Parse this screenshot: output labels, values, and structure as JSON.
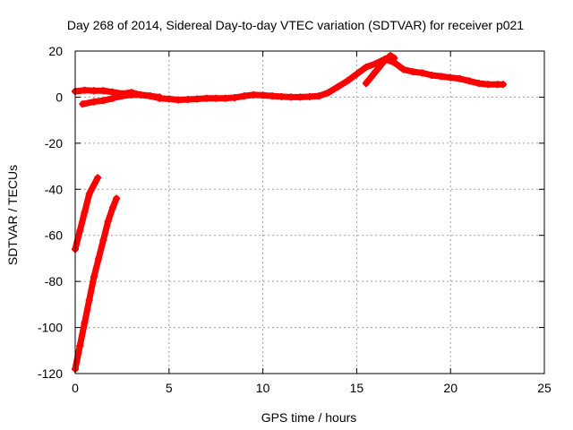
{
  "chart_data": {
    "type": "scatter",
    "title": "Day 268 of 2014, Sidereal Day-to-day VTEC variation (SDTVAR) for receiver p021",
    "xlabel": "GPS time / hours",
    "ylabel": "SDTVAR / TECUs",
    "xlim": [
      0,
      25
    ],
    "ylim": [
      -120,
      20
    ],
    "xticks": [
      0,
      5,
      10,
      15,
      20,
      25
    ],
    "yticks": [
      -120,
      -100,
      -80,
      -60,
      -40,
      -20,
      0,
      20
    ],
    "grid": true,
    "marker_color": "#ff0000",
    "series": [
      {
        "name": "main-trace",
        "points": [
          [
            0.0,
            2.5
          ],
          [
            0.5,
            3.0
          ],
          [
            1.0,
            2.8
          ],
          [
            1.5,
            2.8
          ],
          [
            2.0,
            2.2
          ],
          [
            2.5,
            1.5
          ],
          [
            3.0,
            2.0
          ],
          [
            3.5,
            1.0
          ],
          [
            4.0,
            0.5
          ],
          [
            4.5,
            -0.5
          ],
          [
            5.0,
            -0.8
          ],
          [
            5.5,
            -1.2
          ],
          [
            6.0,
            -1.0
          ],
          [
            6.5,
            -0.8
          ],
          [
            7.0,
            -0.5
          ],
          [
            7.5,
            -0.5
          ],
          [
            8.0,
            -0.5
          ],
          [
            8.5,
            -0.2
          ],
          [
            9.0,
            0.5
          ],
          [
            9.5,
            1.0
          ],
          [
            10.0,
            0.8
          ],
          [
            10.5,
            0.5
          ],
          [
            11.0,
            0.2
          ],
          [
            11.5,
            0.0
          ],
          [
            12.0,
            0.0
          ],
          [
            12.5,
            0.2
          ],
          [
            13.0,
            0.5
          ],
          [
            13.5,
            2.0
          ],
          [
            14.0,
            4.5
          ],
          [
            14.5,
            7.0
          ],
          [
            15.0,
            10.0
          ],
          [
            15.5,
            13.0
          ],
          [
            16.0,
            14.5
          ],
          [
            16.5,
            16.5
          ],
          [
            17.0,
            15.0
          ],
          [
            17.5,
            12.0
          ],
          [
            18.0,
            11.0
          ],
          [
            18.5,
            10.5
          ],
          [
            19.0,
            9.5
          ],
          [
            19.5,
            9.0
          ],
          [
            20.0,
            8.5
          ],
          [
            20.5,
            8.0
          ],
          [
            21.0,
            7.0
          ],
          [
            21.5,
            6.0
          ],
          [
            22.0,
            5.5
          ],
          [
            22.5,
            5.5
          ],
          [
            22.8,
            5.5
          ]
        ]
      },
      {
        "name": "lower-branch",
        "points": [
          [
            0.4,
            -3.0
          ],
          [
            1.0,
            -2.0
          ],
          [
            1.5,
            -1.5
          ],
          [
            2.0,
            -0.5
          ],
          [
            2.5,
            0.5
          ],
          [
            3.0,
            1.0
          ],
          [
            3.5,
            1.0
          ],
          [
            4.0,
            0.5
          ],
          [
            4.5,
            0.0
          ]
        ]
      },
      {
        "name": "late-branch",
        "points": [
          [
            15.5,
            6.0
          ],
          [
            16.0,
            11.0
          ],
          [
            16.5,
            16.0
          ],
          [
            16.8,
            18.0
          ],
          [
            17.0,
            17.0
          ]
        ]
      },
      {
        "name": "early-segment-1",
        "points": [
          [
            0.0,
            -66.0
          ],
          [
            0.25,
            -58.0
          ],
          [
            0.5,
            -50.0
          ],
          [
            0.75,
            -42.0
          ],
          [
            1.2,
            -35.0
          ]
        ]
      },
      {
        "name": "early-segment-2",
        "points": [
          [
            0.0,
            -118.0
          ],
          [
            0.25,
            -108.0
          ],
          [
            0.5,
            -98.0
          ],
          [
            0.75,
            -88.0
          ],
          [
            1.0,
            -78.0
          ],
          [
            1.25,
            -70.0
          ],
          [
            1.5,
            -62.0
          ],
          [
            1.75,
            -54.0
          ],
          [
            2.0,
            -48.0
          ],
          [
            2.2,
            -44.0
          ]
        ]
      }
    ]
  }
}
